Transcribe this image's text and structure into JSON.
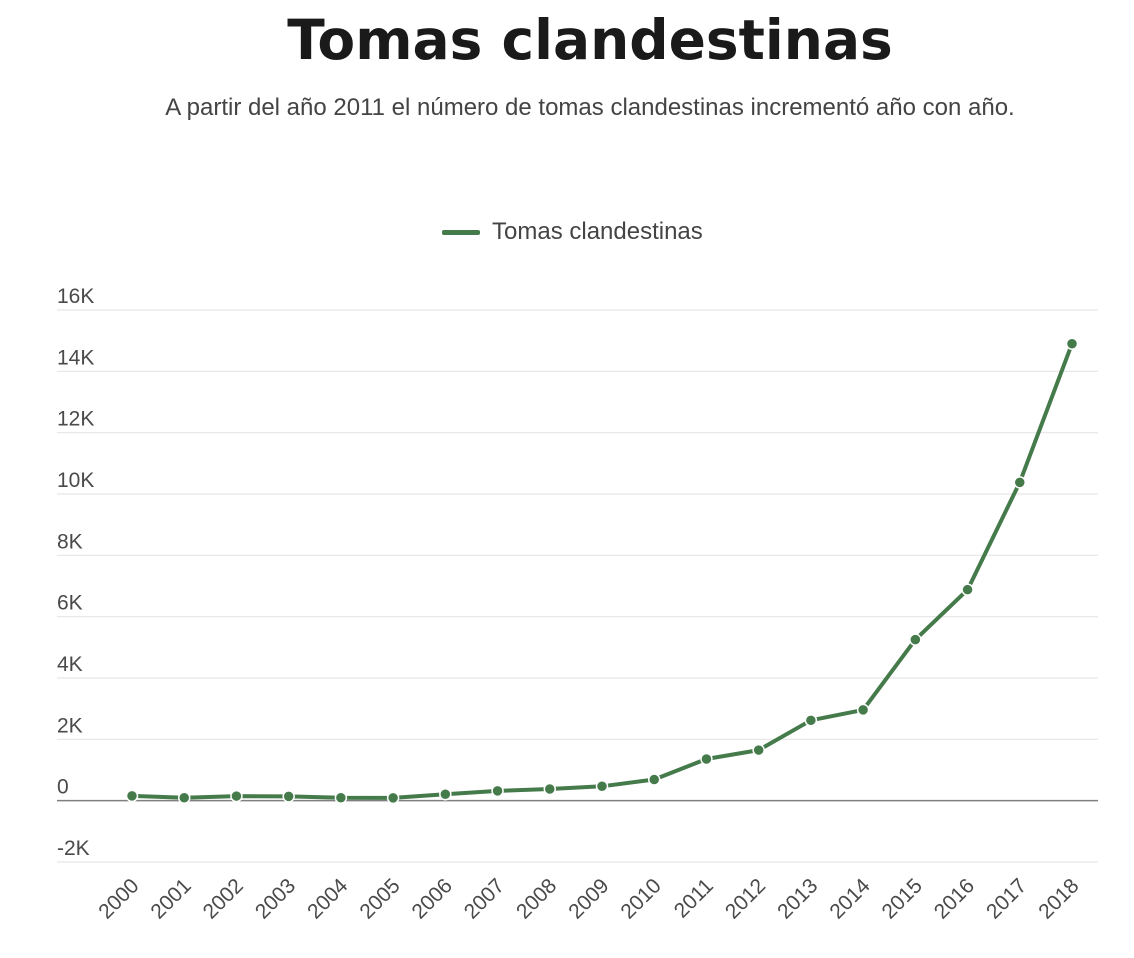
{
  "title": "Tomas clandestinas",
  "subtitle": "A partir del año 2011 el número de tomas clandestinas incrementó año con año.",
  "colors": {
    "series": "#457a4b",
    "grid": "#e6e6e6",
    "zero_line": "#7f7f7f",
    "text": "#444444",
    "title": "#1a1a1a"
  },
  "chart_data": {
    "type": "line",
    "title": "Tomas clandestinas",
    "subtitle": "A partir del año 2011 el número de tomas clandestinas incrementó año con año.",
    "xlabel": "",
    "ylabel": "",
    "x": [
      "2000",
      "2001",
      "2002",
      "2003",
      "2004",
      "2005",
      "2006",
      "2007",
      "2008",
      "2009",
      "2010",
      "2011",
      "2012",
      "2013",
      "2014",
      "2015",
      "2016",
      "2017",
      "2018"
    ],
    "series": [
      {
        "name": "Tomas clandestinas",
        "values": [
          155,
          95,
          150,
          140,
          95,
          90,
          210,
          320,
          380,
          470,
          690,
          1360,
          1650,
          2620,
          2960,
          5250,
          6880,
          10380,
          14900
        ]
      }
    ],
    "ylim": [
      -2000,
      16000
    ],
    "yticks": [
      16000,
      14000,
      12000,
      10000,
      8000,
      6000,
      4000,
      2000,
      0,
      -2000
    ],
    "ytick_labels": [
      "16K",
      "14K",
      "12K",
      "10K",
      "8K",
      "6K",
      "4K",
      "2K",
      "0",
      "-2K"
    ],
    "grid": true,
    "legend_position": "top-center",
    "markers": true
  }
}
